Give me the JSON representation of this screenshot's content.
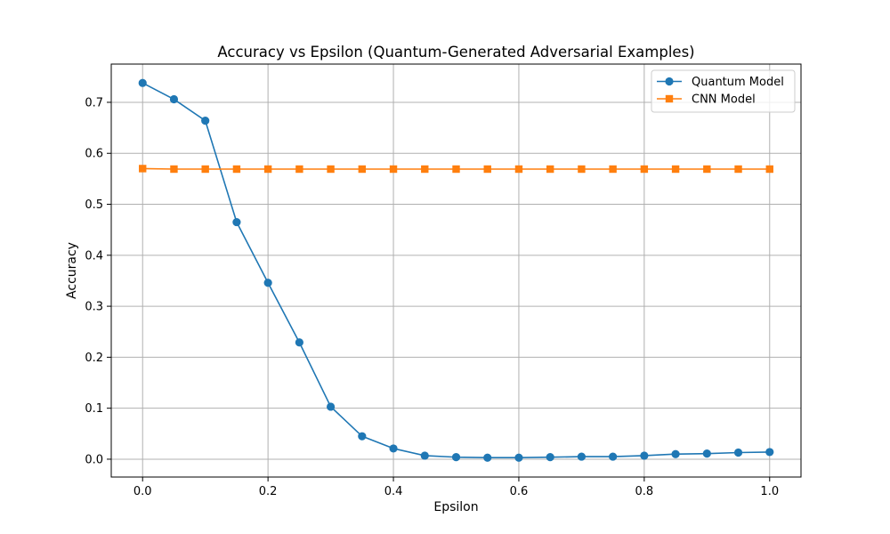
{
  "chart_data": {
    "type": "line",
    "title": "Accuracy vs Epsilon (Quantum-Generated Adversarial Examples)",
    "xlabel": "Epsilon",
    "ylabel": "Accuracy",
    "xlim": [
      -0.05,
      1.05
    ],
    "ylim": [
      -0.035,
      0.775
    ],
    "xticks": [
      0.0,
      0.2,
      0.4,
      0.6,
      0.8,
      1.0
    ],
    "xtick_labels": [
      "0.0",
      "0.2",
      "0.4",
      "0.6",
      "0.8",
      "1.0"
    ],
    "yticks": [
      0.0,
      0.1,
      0.2,
      0.3,
      0.4,
      0.5,
      0.6,
      0.7
    ],
    "ytick_labels": [
      "0.0",
      "0.1",
      "0.2",
      "0.3",
      "0.4",
      "0.5",
      "0.6",
      "0.7"
    ],
    "grid": true,
    "legend_position": "top-right",
    "x": [
      0.0,
      0.05,
      0.1,
      0.15,
      0.2,
      0.25,
      0.3,
      0.35,
      0.4,
      0.45,
      0.5,
      0.55,
      0.6,
      0.65,
      0.7,
      0.75,
      0.8,
      0.85,
      0.9,
      0.95,
      1.0
    ],
    "series": [
      {
        "name": "Quantum Model",
        "color": "#1f77b4",
        "marker": "circle",
        "values": [
          0.738,
          0.706,
          0.664,
          0.465,
          0.346,
          0.229,
          0.103,
          0.045,
          0.021,
          0.007,
          0.004,
          0.003,
          0.003,
          0.004,
          0.005,
          0.005,
          0.007,
          0.01,
          0.011,
          0.013,
          0.014
        ]
      },
      {
        "name": "CNN Model",
        "color": "#ff7f0e",
        "marker": "square",
        "values": [
          0.57,
          0.569,
          0.569,
          0.569,
          0.569,
          0.569,
          0.569,
          0.569,
          0.569,
          0.569,
          0.569,
          0.569,
          0.569,
          0.569,
          0.569,
          0.569,
          0.569,
          0.569,
          0.569,
          0.569,
          0.569
        ]
      }
    ]
  }
}
